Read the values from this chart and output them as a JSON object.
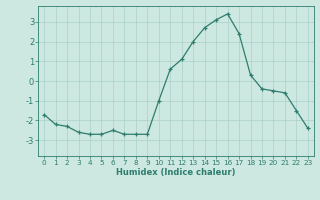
{
  "x": [
    0,
    1,
    2,
    3,
    4,
    5,
    6,
    7,
    8,
    9,
    10,
    11,
    12,
    13,
    14,
    15,
    16,
    17,
    18,
    19,
    20,
    21,
    22,
    23
  ],
  "y": [
    -1.7,
    -2.2,
    -2.3,
    -2.6,
    -2.7,
    -2.7,
    -2.5,
    -2.7,
    -2.7,
    -2.7,
    -1.0,
    0.6,
    1.1,
    2.0,
    2.7,
    3.1,
    3.4,
    2.4,
    0.3,
    -0.4,
    -0.5,
    -0.6,
    -1.5,
    -2.4
  ],
  "xlabel": "Humidex (Indice chaleur)",
  "ylim": [
    -3.8,
    3.8
  ],
  "xlim": [
    -0.5,
    23.5
  ],
  "yticks": [
    -3,
    -2,
    -1,
    0,
    1,
    2,
    3
  ],
  "xticks": [
    0,
    1,
    2,
    3,
    4,
    5,
    6,
    7,
    8,
    9,
    10,
    11,
    12,
    13,
    14,
    15,
    16,
    17,
    18,
    19,
    20,
    21,
    22,
    23
  ],
  "line_color": "#2e7d6e",
  "marker": "+",
  "bg_color": "#cce8e0",
  "grid_color": "#aad0c8",
  "tick_label_color": "#2e7d6e",
  "axis_color": "#2e7d6e",
  "xlabel_fontsize": 6.0,
  "tick_fontsize": 5.2,
  "ytick_fontsize": 6.0
}
